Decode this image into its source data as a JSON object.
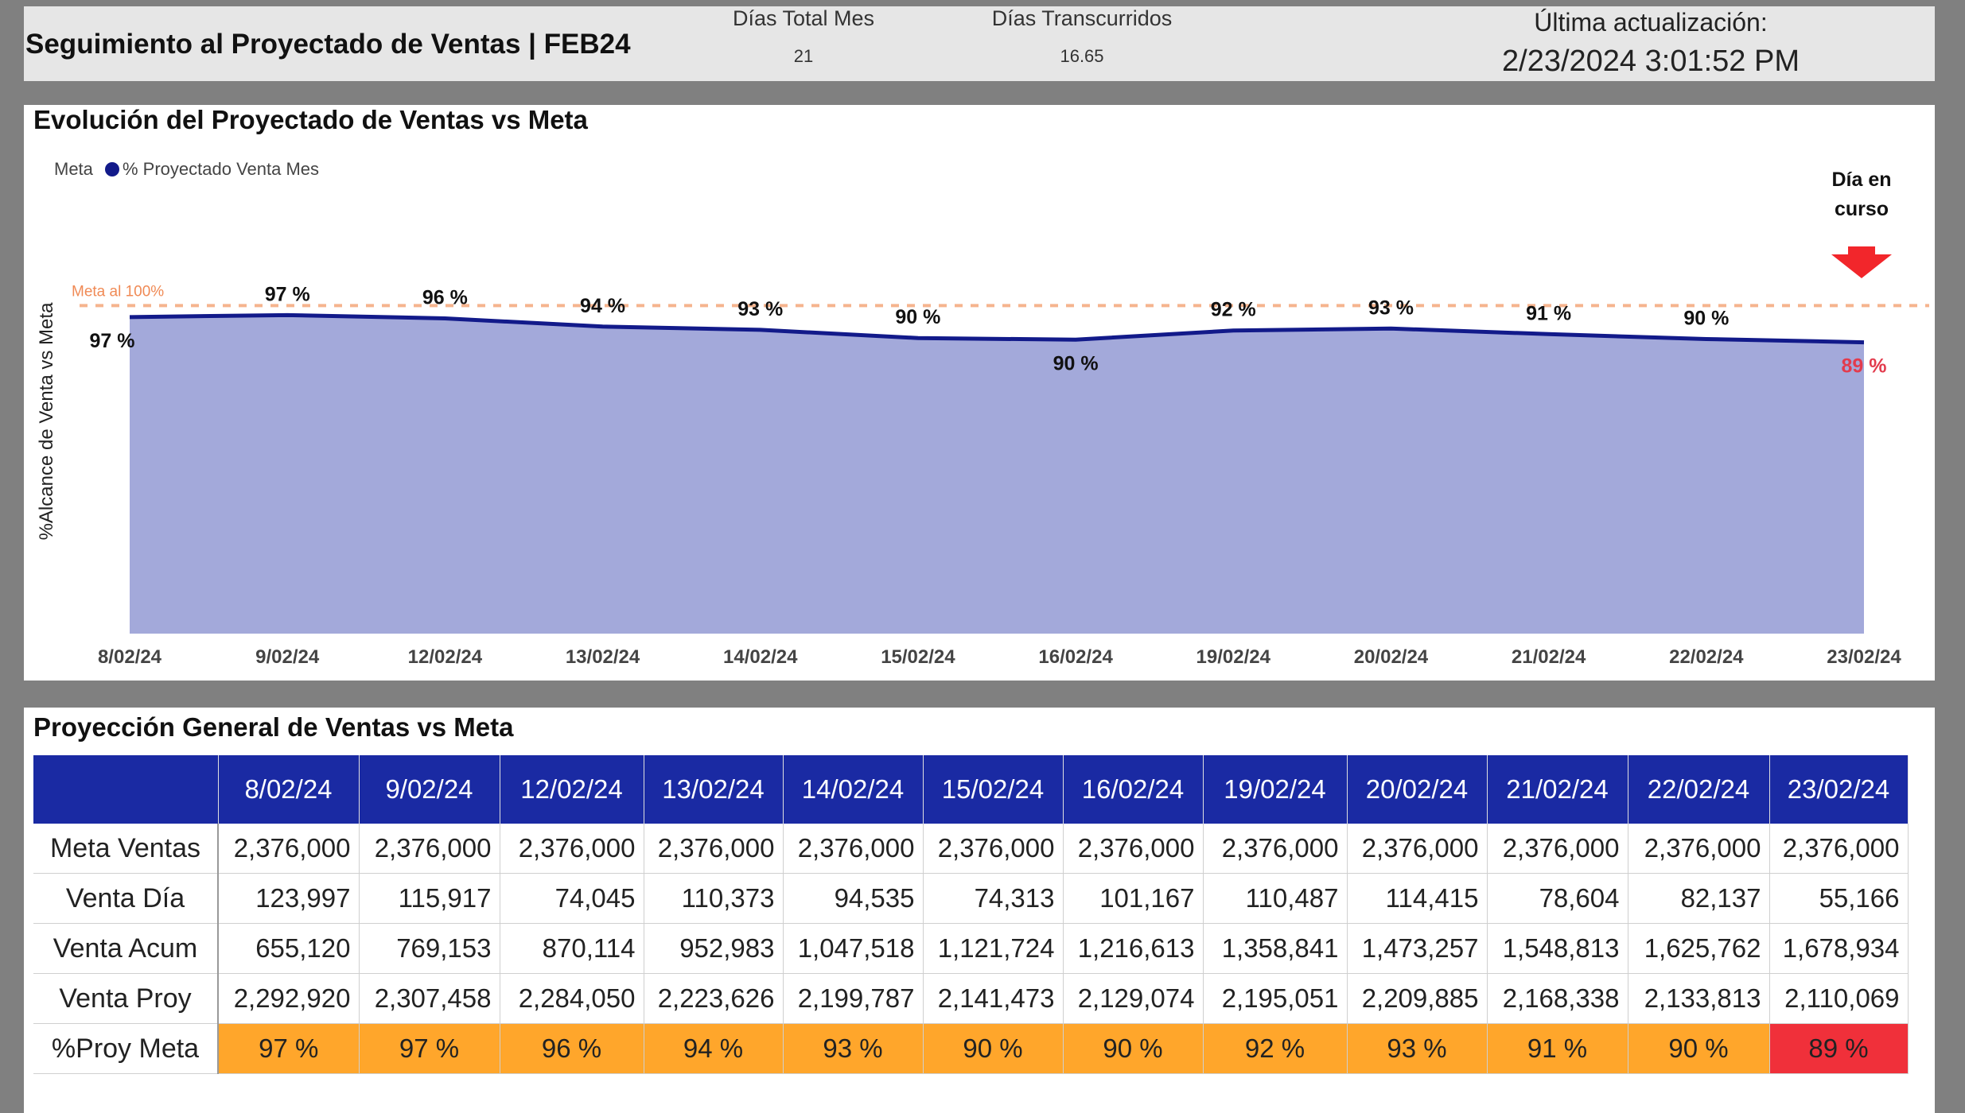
{
  "header": {
    "title": "Seguimiento al Proyectado de Ventas | FEB24",
    "dias_total_label": "Días Total Mes",
    "dias_total_value": "21",
    "dias_transcurridos_label": "Días Transcurridos",
    "dias_transcurridos_value": "16.65",
    "ultima_label": "Última actualización:",
    "ultima_value": "2/23/2024 3:01:52 PM"
  },
  "chart_data": {
    "type": "area",
    "title": "Evolución del Proyectado de Ventas vs Meta",
    "legend": [
      "Meta",
      "% Proyectado Venta Mes"
    ],
    "legend_placement": "top-left",
    "ylabel": "%Alcance de Venta vs Meta",
    "ylim": [
      0,
      100
    ],
    "categories": [
      "8/02/24",
      "9/02/24",
      "12/02/24",
      "13/02/24",
      "14/02/24",
      "15/02/24",
      "16/02/24",
      "19/02/24",
      "20/02/24",
      "21/02/24",
      "22/02/24",
      "23/02/24"
    ],
    "series": [
      {
        "name": "% Proyectado Venta Mes",
        "values": [
          96.5,
          97.1,
          96.1,
          93.6,
          92.6,
          90.1,
          89.6,
          92.4,
          93.0,
          91.3,
          89.8,
          88.8
        ]
      }
    ],
    "data_labels": [
      "97 %",
      "97 %",
      "96 %",
      "94 %",
      "93 %",
      "90 %",
      "90 %",
      "92 %",
      "93 %",
      "91 %",
      "90 %",
      "89 %"
    ],
    "meta_line": {
      "value": 100,
      "label": "Meta al 100%"
    },
    "annotation": {
      "text_line1": "Día en",
      "text_line2": "curso"
    },
    "colors": {
      "area": "#a3a9da",
      "line": "#121a8a",
      "meta": "#f5b48e",
      "last_label": "#e23b4d"
    }
  },
  "table": {
    "title": "Proyección General de Ventas vs Meta",
    "columns": [
      "8/02/24",
      "9/02/24",
      "12/02/24",
      "13/02/24",
      "14/02/24",
      "15/02/24",
      "16/02/24",
      "19/02/24",
      "20/02/24",
      "21/02/24",
      "22/02/24",
      "23/02/24"
    ],
    "rows": [
      {
        "label": "Meta Ventas",
        "values": [
          "2,376,000",
          "2,376,000",
          "2,376,000",
          "2,376,000",
          "2,376,000",
          "2,376,000",
          "2,376,000",
          "2,376,000",
          "2,376,000",
          "2,376,000",
          "2,376,000",
          "2,376,000"
        ]
      },
      {
        "label": "Venta Día",
        "values": [
          "123,997",
          "115,917",
          "74,045",
          "110,373",
          "94,535",
          "74,313",
          "101,167",
          "110,487",
          "114,415",
          "78,604",
          "82,137",
          "55,166"
        ]
      },
      {
        "label": "Venta Acum",
        "values": [
          "655,120",
          "769,153",
          "870,114",
          "952,983",
          "1,047,518",
          "1,121,724",
          "1,216,613",
          "1,358,841",
          "1,473,257",
          "1,548,813",
          "1,625,762",
          "1,678,934"
        ]
      },
      {
        "label": "Venta Proy",
        "values": [
          "2,292,920",
          "2,307,458",
          "2,284,050",
          "2,223,626",
          "2,199,787",
          "2,141,473",
          "2,129,074",
          "2,195,051",
          "2,209,885",
          "2,168,338",
          "2,133,813",
          "2,110,069"
        ]
      },
      {
        "label": "%Proy Meta",
        "values": [
          "97 %",
          "97 %",
          "96 %",
          "94 %",
          "93 %",
          "90 %",
          "90 %",
          "92 %",
          "93 %",
          "91 %",
          "90 %",
          "89 %"
        ]
      }
    ],
    "colors": {
      "header_bg": "#1a2aa3",
      "pct_ok": "#ffa62b",
      "pct_low": "#f0303a"
    }
  }
}
